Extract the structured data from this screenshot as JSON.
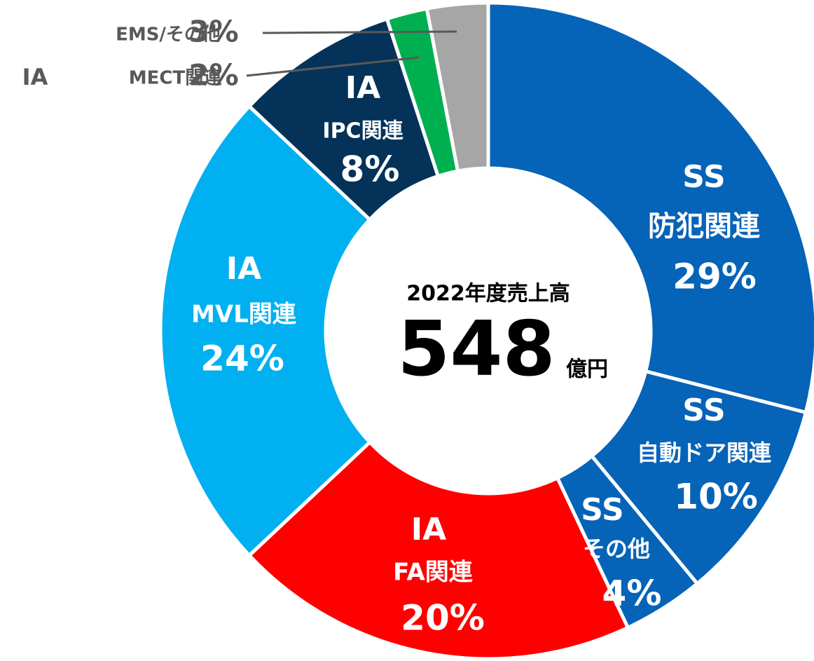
{
  "chart_data": {
    "type": "donut",
    "groups": [
      "SS",
      "SS",
      "SS",
      "IA",
      "IA",
      "IA",
      "IA",
      null
    ],
    "categories": [
      "防犯関連",
      "自動ドア関連",
      "その他",
      "FA関連",
      "MVL関連",
      "IPC関連",
      "MECT関連",
      "EMS/その他"
    ],
    "values": [
      29,
      10,
      4,
      20,
      24,
      8,
      2,
      3
    ],
    "value_labels": [
      "29%",
      "10%",
      "4%",
      "20%",
      "24%",
      "8%",
      "2%",
      "3%"
    ],
    "colors": [
      "#0563b8",
      "#0563b8",
      "#0563b8",
      "#ff0000",
      "#00b0f0",
      "#053259",
      "#00b050",
      "#a6a6a6"
    ],
    "center_title": "2022年度売上高",
    "total": 548,
    "total_unit": "億円"
  }
}
